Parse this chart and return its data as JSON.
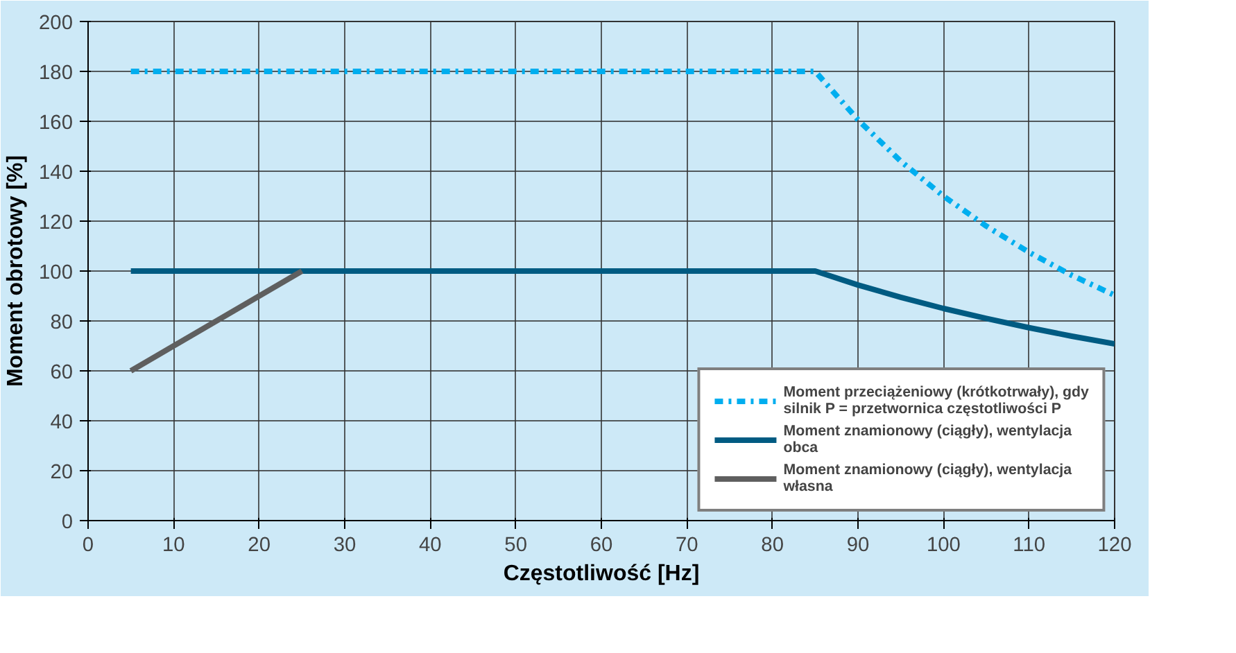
{
  "chart_data": {
    "type": "line",
    "xlabel": "Częstotliwość [Hz]",
    "ylabel": "Moment obrotowy [%]",
    "x": [
      5,
      85,
      90,
      95,
      100,
      105,
      110,
      115,
      120
    ],
    "series": [
      {
        "name": "Moment przeciążeniowy (krótkotrwały), gdy silnik P = przetwornica częstotliwości P",
        "color": "#00aeef",
        "line_style": "dashdot",
        "values": [
          180,
          180,
          160.6,
          144,
          130,
          118,
          107.5,
          98.3,
          90.3
        ]
      },
      {
        "name": "Moment znamionowy (ciągły), wentylacja obca",
        "color": "#005b82",
        "values": [
          100,
          100,
          94.4,
          89.5,
          85,
          81,
          77.3,
          73.9,
          70.8
        ]
      },
      {
        "name": "Moment znamionowy (ciągły), wentylacja własna",
        "color": "#5f5f5f",
        "x": [
          5,
          25
        ],
        "values": [
          60,
          100
        ]
      }
    ],
    "xlim": [
      0,
      120
    ],
    "xticks": [
      0,
      10,
      20,
      30,
      40,
      50,
      60,
      70,
      80,
      90,
      100,
      110,
      120
    ],
    "ylim": [
      0,
      200
    ],
    "yticks": [
      0,
      20,
      40,
      60,
      80,
      100,
      120,
      140,
      160,
      180,
      200
    ],
    "grid": true,
    "legend": "bottom right",
    "line_style": "solid",
    "marker": "none"
  }
}
